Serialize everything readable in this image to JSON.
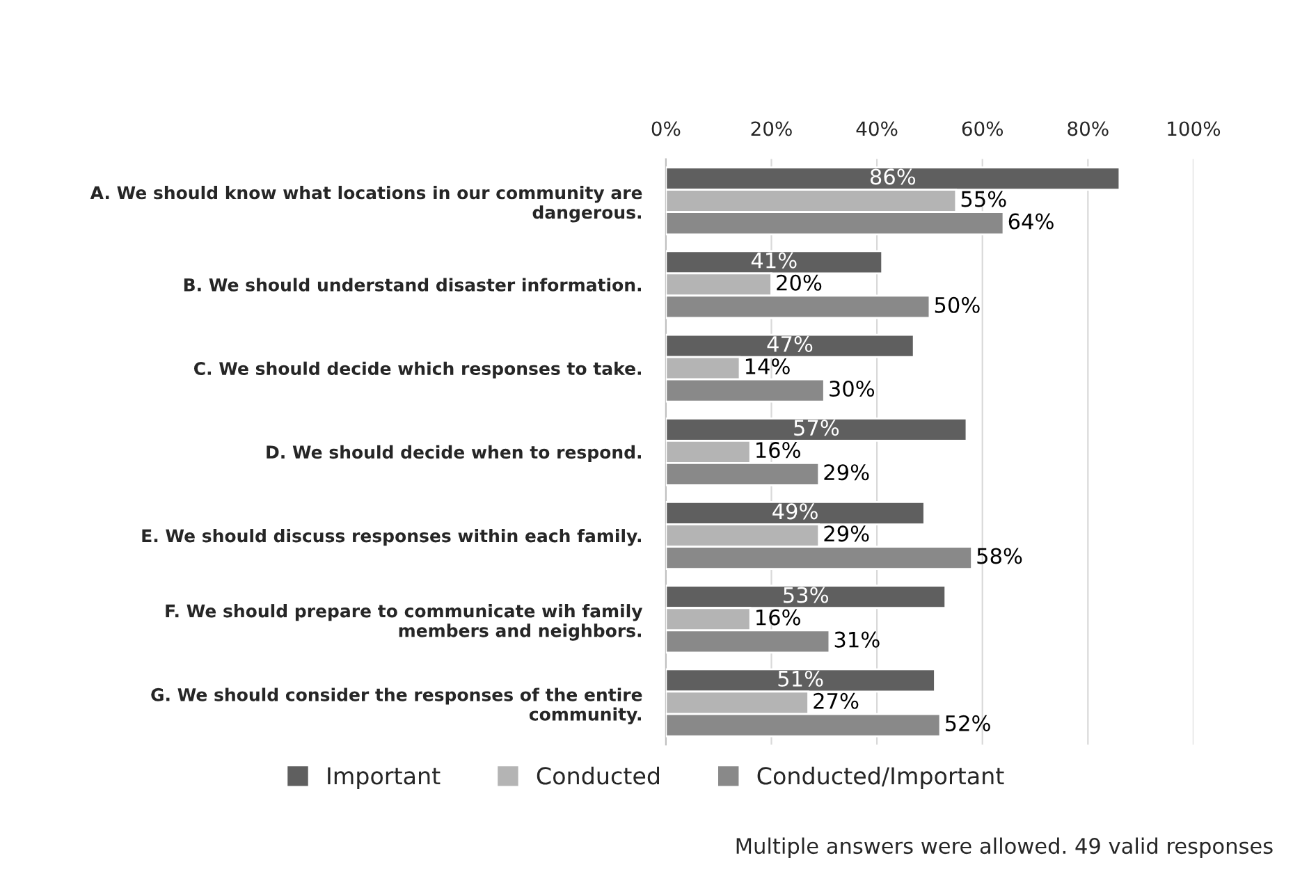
{
  "chart_data": {
    "type": "bar",
    "orientation": "horizontal",
    "categories": [
      "A. We should know what locations in our community are\ndangerous.",
      "B. We should understand disaster information.",
      "C. We should decide which responses to take.",
      "D. We should decide when to respond.",
      "E. We should discuss responses within each family.",
      "F. We should prepare to communicate wih family\nmembers and neighbors.",
      "G. We should consider the responses of the entire\ncommunity."
    ],
    "series": [
      {
        "name": "Important",
        "color": "#5f5f5f",
        "values": [
          86,
          41,
          47,
          57,
          49,
          53,
          51
        ],
        "value_labels": [
          "86%",
          "41%",
          "47%",
          "57%",
          "49%",
          "53%",
          "51%"
        ]
      },
      {
        "name": "Conducted",
        "color": "#b4b4b4",
        "values": [
          55,
          20,
          14,
          16,
          29,
          16,
          27
        ],
        "value_labels": [
          "55%",
          "20%",
          "14%",
          "16%",
          "29%",
          "16%",
          "27%"
        ]
      },
      {
        "name": "Conducted/Important",
        "color": "#898989",
        "values": [
          64,
          50,
          30,
          29,
          58,
          31,
          52
        ],
        "value_labels": [
          "64%",
          "50%",
          "30%",
          "29%",
          "58%",
          "31%",
          "52%"
        ]
      }
    ],
    "xlim": [
      0,
      100
    ],
    "xticks": [
      {
        "value": 0,
        "label": "0%"
      },
      {
        "value": 20,
        "label": "20%"
      },
      {
        "value": 40,
        "label": "40%"
      },
      {
        "value": 60,
        "label": "60%"
      },
      {
        "value": 80,
        "label": "80%"
      },
      {
        "value": 100,
        "label": "100%"
      }
    ],
    "grid": "x",
    "legend": "bottom",
    "annotations": [
      "Multiple answers were allowed. 49 valid responses"
    ]
  }
}
